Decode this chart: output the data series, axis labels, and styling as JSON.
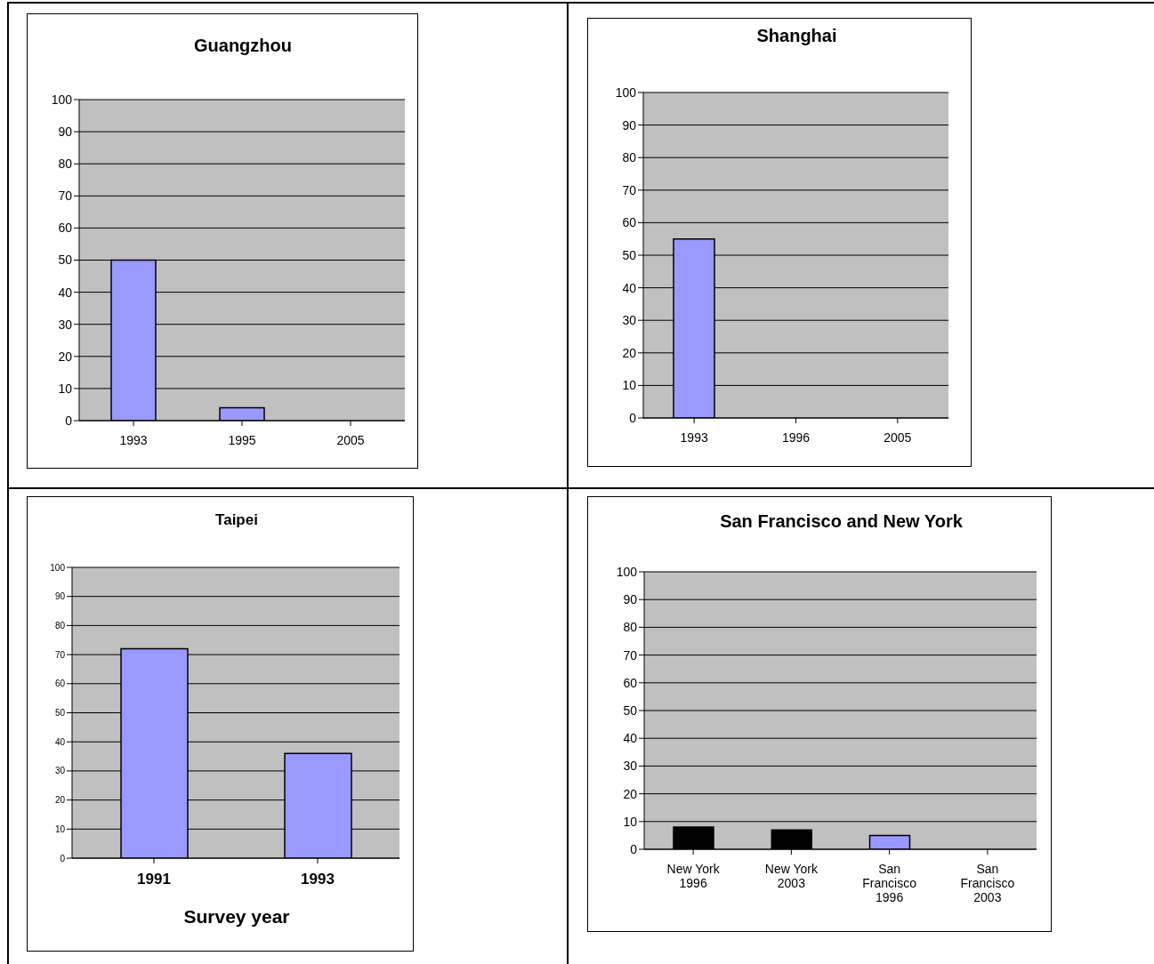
{
  "chart_data": [
    {
      "type": "bar",
      "title": "Guangzhou",
      "categories": [
        "1993",
        "1995",
        "2005"
      ],
      "values": [
        50,
        4,
        0
      ],
      "colors": [
        "#9999ff",
        "#9999ff",
        "#9999ff"
      ],
      "ylim": [
        0,
        100
      ],
      "yticks": [
        0,
        10,
        20,
        30,
        40,
        50,
        60,
        70,
        80,
        90,
        100
      ],
      "grid": "y"
    },
    {
      "type": "bar",
      "title": "Shanghai",
      "categories": [
        "1993",
        "1996",
        "2005"
      ],
      "values": [
        55,
        0,
        0
      ],
      "colors": [
        "#9999ff",
        "#9999ff",
        "#9999ff"
      ],
      "ylim": [
        0,
        100
      ],
      "yticks": [
        0,
        10,
        20,
        30,
        40,
        50,
        60,
        70,
        80,
        90,
        100
      ],
      "grid": "y"
    },
    {
      "type": "bar",
      "title": "Taipei",
      "xlabel": "Survey year",
      "categories": [
        "1991",
        "1993"
      ],
      "values": [
        72,
        36
      ],
      "colors": [
        "#9999ff",
        "#9999ff"
      ],
      "ylim": [
        0,
        100
      ],
      "yticks": [
        0,
        10,
        20,
        30,
        40,
        50,
        60,
        70,
        80,
        90,
        100
      ],
      "grid": "y"
    },
    {
      "type": "bar",
      "title": "San Francisco and New York",
      "categories": [
        "New York 1996",
        "New York 2003",
        "San Francisco 1996",
        "San Francisco 2003"
      ],
      "values": [
        8,
        7,
        5,
        0
      ],
      "colors": [
        "#000000",
        "#000000",
        "#9999ff",
        "#9999ff"
      ],
      "ylim": [
        0,
        100
      ],
      "yticks": [
        0,
        10,
        20,
        30,
        40,
        50,
        60,
        70,
        80,
        90,
        100
      ],
      "grid": "y"
    }
  ]
}
